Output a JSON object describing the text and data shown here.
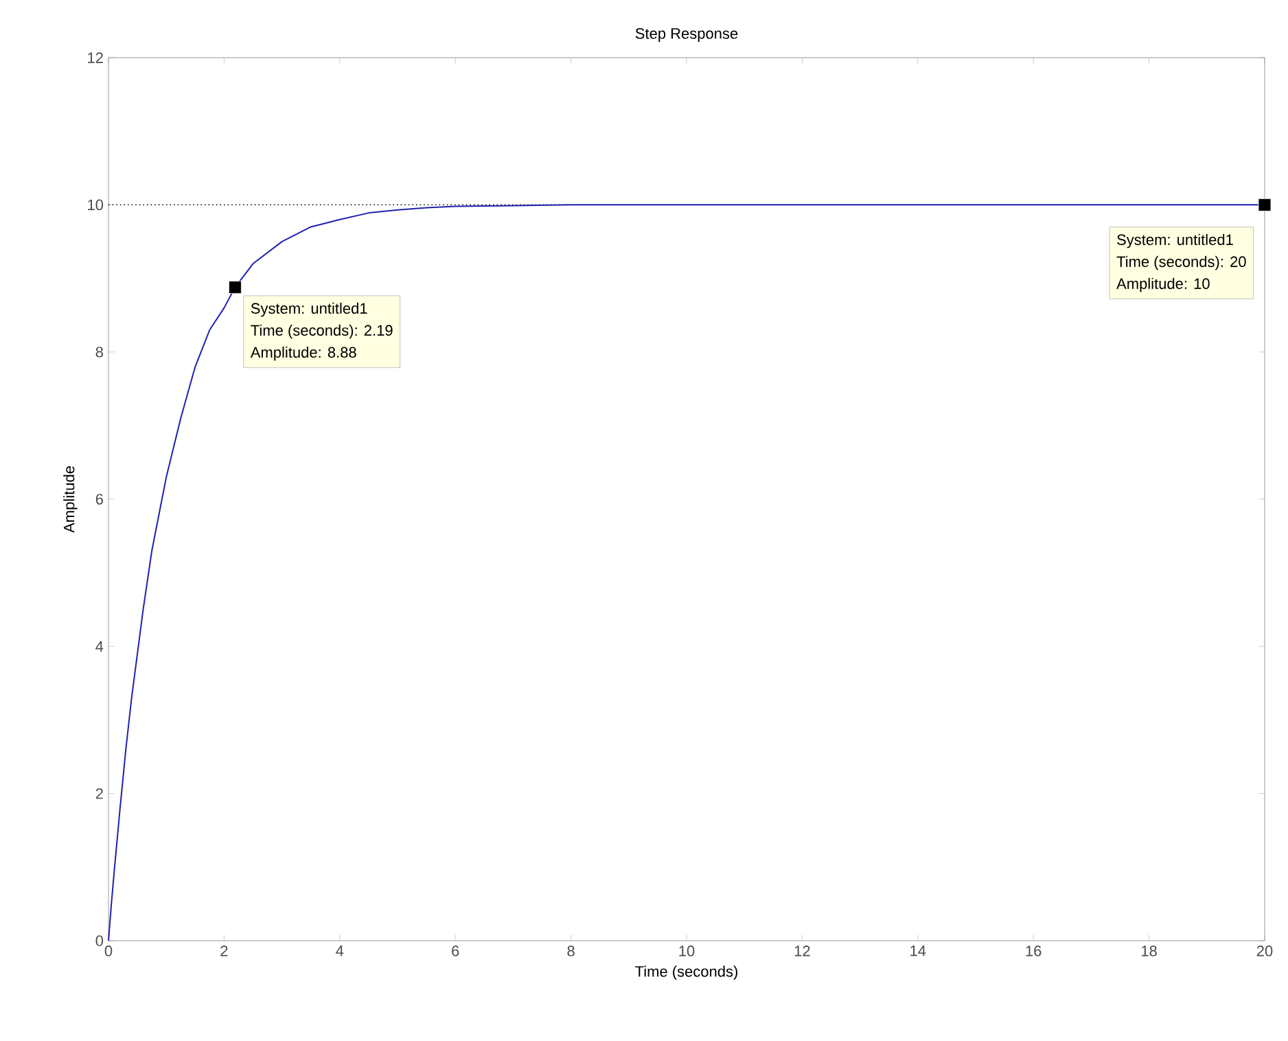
{
  "chart_data": {
    "type": "line",
    "title": "Step Response",
    "xlabel": "Time (seconds)",
    "ylabel": "Amplitude",
    "x": [
      0,
      0.05,
      0.1,
      0.2,
      0.3,
      0.4,
      0.5,
      0.6,
      0.75,
      0.9,
      1,
      1.25,
      1.5,
      1.75,
      2,
      2.19,
      2.5,
      3,
      3.5,
      4,
      4.5,
      5,
      5.5,
      6,
      7,
      8,
      10,
      12,
      15,
      18,
      20
    ],
    "series": [
      {
        "color": "#2020b0",
        "values": [
          0,
          0.5,
          0.95,
          1.8,
          2.6,
          3.3,
          3.9,
          4.5,
          5.3,
          5.9,
          6.3,
          7.1,
          7.8,
          8.3,
          8.6,
          8.88,
          9.2,
          9.5,
          9.7,
          9.8,
          9.89,
          9.93,
          9.96,
          9.98,
          9.99,
          10,
          10,
          10,
          10,
          10,
          10
        ]
      }
    ],
    "xlim": [
      0,
      20
    ],
    "ylim": [
      0,
      12
    ],
    "xticks": [
      0,
      2,
      4,
      6,
      8,
      10,
      12,
      14,
      16,
      18,
      20
    ],
    "yticks": [
      0,
      2,
      4,
      6,
      8,
      10,
      12
    ],
    "ref_lines": [
      {
        "axis": "y",
        "value": 10,
        "color": "#000000",
        "line_style": "dotted"
      }
    ],
    "grid": false,
    "line_style": "solid",
    "marker": "none",
    "annotations": [
      {
        "text": "System: untitled1",
        "x": 2.19,
        "y": 8.88
      },
      "Time (seconds): 2.19",
      "Amplitude: 8.88",
      {
        "text": "System: untitled1",
        "x": 20,
        "y": 10
      },
      "Time (seconds): 20",
      "Amplitude: 10"
    ]
  }
}
